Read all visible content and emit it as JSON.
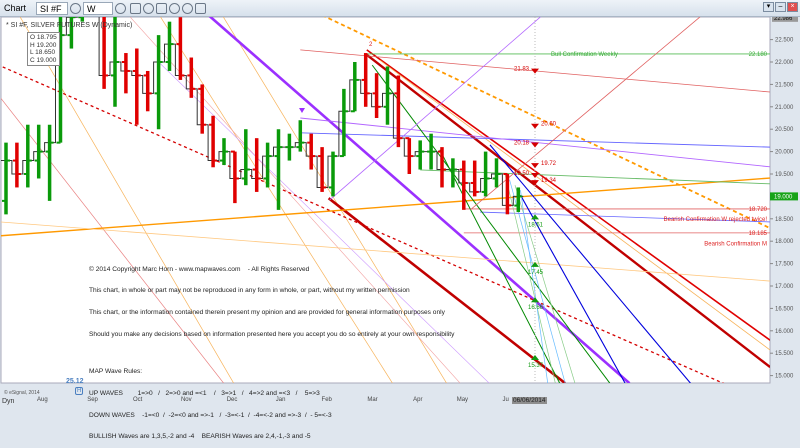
{
  "toolbar": {
    "title": "Chart",
    "symbol": "SI #F",
    "interval": "W",
    "icons": [
      "pencil-icon",
      "cursor-icon",
      "comment-icon",
      "play-icon",
      "clock-icon",
      "link-icon"
    ]
  },
  "legend": "* SI #F, SILVER FUTURES W (Dynamic)",
  "ohlc": {
    "o": "O 18.795",
    "h": "H 19.200",
    "l": "L 18.650",
    "c": "C 19.000"
  },
  "note": {
    "lines": [
      "© 2014 Copyright Marc Horn - www.mapwaves.com    - All Rights Reserved",
      "This chart, in whole or part may not be reproduced in any form in whole, or part, without my written permission",
      "This chart, or the information contained therein present my opinion and are provided for general information purposes only",
      "Should you make any decisions based on information presented here you accept you do so entirely at your own responsibility",
      "",
      "MAP Wave Rules:",
      "UP WAVES        1=>0   /   2=>0 and =<1    /   3=>1   /   4=>2 and =<3   /    5=>3",
      "DOWN WAVES    -1=<0  /  -2=<0 and =>-1   /  -3=<-1  /  -4=<-2 and =>-3  /  - 5=<-3",
      "BULLISH Waves are 1,3,5,-2 and -4    BEARISH Waves are 2,4,-1,-3 and -5"
    ]
  },
  "footer": {
    "copyright": "© eSignal, 2014",
    "dyn": "Dyn",
    "date_box": "06/06/2014",
    "high_marker_value": "25.12",
    "high_marker": "H"
  },
  "colors": {
    "up": "#0a9a0a",
    "down": "#e00000",
    "close_line": "#333333",
    "current": "#17a317"
  },
  "chart_data": {
    "type": "ohlc",
    "ylim": [
      14.83,
      23.38
    ],
    "yticks": [
      15,
      15.5,
      16,
      16.5,
      17,
      17.5,
      18,
      18.5,
      19,
      19.5,
      20,
      20.5,
      21,
      21.5,
      22,
      22.5
    ],
    "ytick_labels": [
      "15.000",
      "15.500",
      "16.000",
      "16.500",
      "17.000",
      "17.500",
      "18.000",
      "18.500",
      "19.000",
      "19.500",
      "20.000",
      "20.500",
      "21.000",
      "21.500",
      "22.000",
      "22.500"
    ],
    "top_value": "22.986",
    "current_value": "19.000",
    "xticks": [
      {
        "label": "Aug",
        "bar": 3.4
      },
      {
        "label": "Sep",
        "bar": 8
      },
      {
        "label": "Oct",
        "bar": 12.2
      },
      {
        "label": "Nov",
        "bar": 16.6
      },
      {
        "label": "Dec",
        "bar": 20.8
      },
      {
        "label": "Jan",
        "bar": 25.3
      },
      {
        "label": "Feb",
        "bar": 29.5
      },
      {
        "label": "Mar",
        "bar": 33.7
      },
      {
        "label": "Apr",
        "bar": 37.9
      },
      {
        "label": "May",
        "bar": 41.9
      },
      {
        "label": "Ju",
        "bar": 46.1
      }
    ],
    "bars": [
      [
        18.9,
        20.2,
        18.6,
        19.8
      ],
      [
        19.8,
        20.2,
        19.2,
        19.5
      ],
      [
        19.5,
        20.6,
        19.2,
        19.8
      ],
      [
        19.8,
        20.6,
        19.4,
        20.0
      ],
      [
        20.0,
        20.6,
        18.9,
        20.2
      ],
      [
        20.2,
        23.2,
        20.2,
        22.6
      ],
      [
        22.6,
        23.4,
        22.3,
        23.0
      ],
      [
        23.0,
        24.5,
        22.9,
        24.3
      ],
      [
        24.3,
        25.1,
        23.2,
        23.4
      ],
      [
        23.4,
        23.5,
        21.4,
        21.7
      ],
      [
        21.7,
        23.3,
        21.0,
        22.0
      ],
      [
        22.0,
        22.2,
        21.3,
        21.8
      ],
      [
        21.8,
        22.3,
        20.6,
        21.7
      ],
      [
        21.7,
        21.8,
        20.9,
        21.3
      ],
      [
        21.3,
        22.6,
        20.5,
        22.0
      ],
      [
        22.0,
        22.9,
        21.8,
        22.4
      ],
      [
        22.4,
        23.0,
        21.6,
        21.7
      ],
      [
        21.7,
        22.1,
        21.2,
        21.4
      ],
      [
        21.4,
        21.5,
        20.4,
        20.6
      ],
      [
        20.6,
        20.8,
        19.65,
        19.8
      ],
      [
        19.8,
        20.3,
        19.7,
        20.0
      ],
      [
        20.0,
        20.0,
        18.85,
        19.4
      ],
      [
        19.4,
        20.5,
        19.25,
        19.6
      ],
      [
        19.6,
        20.3,
        19.1,
        19.4
      ],
      [
        19.4,
        20.2,
        19.2,
        19.9
      ],
      [
        19.9,
        20.5,
        18.7,
        20.1
      ],
      [
        20.1,
        20.4,
        19.8,
        20.1
      ],
      [
        20.1,
        20.7,
        20.0,
        20.2
      ],
      [
        20.2,
        20.4,
        19.6,
        19.9
      ],
      [
        19.9,
        20.1,
        19.1,
        19.2
      ],
      [
        19.2,
        20.0,
        19.0,
        19.9
      ],
      [
        19.9,
        21.4,
        19.9,
        20.9
      ],
      [
        20.9,
        22.0,
        20.9,
        21.6
      ],
      [
        21.6,
        22.2,
        21.0,
        21.3
      ],
      [
        21.3,
        21.75,
        20.75,
        21.0
      ],
      [
        21.0,
        21.9,
        20.6,
        21.3
      ],
      [
        21.3,
        21.7,
        20.1,
        20.3
      ],
      [
        20.3,
        20.3,
        19.5,
        19.9
      ],
      [
        19.9,
        20.25,
        19.6,
        20.0
      ],
      [
        20.0,
        20.4,
        19.6,
        20.0
      ],
      [
        20.0,
        20.1,
        19.2,
        19.6
      ],
      [
        19.6,
        19.85,
        19.2,
        19.6
      ],
      [
        19.6,
        19.8,
        18.7,
        19.3
      ],
      [
        19.3,
        19.8,
        19.0,
        19.1
      ],
      [
        19.1,
        20.0,
        19.0,
        19.4
      ],
      [
        19.4,
        19.85,
        19.2,
        19.5
      ],
      [
        19.5,
        19.5,
        18.6,
        18.8
      ],
      [
        18.795,
        19.2,
        18.65,
        19.0
      ]
    ],
    "lines": [
      {
        "from": [
          0.4,
          23.38
        ],
        "to": [
          22.4,
          14.2
        ],
        "color": "#f7b35a",
        "w": 0.7
      },
      {
        "from": [
          13.2,
          23.38
        ],
        "to": [
          37.1,
          14.2
        ],
        "color": "#f7b35a",
        "w": 0.7
      },
      {
        "from": [
          19,
          23.38
        ],
        "to": [
          42,
          14.2
        ],
        "color": "#f7b35a",
        "w": 0.7
      },
      {
        "from": [
          -0.5,
          21.2
        ],
        "to": [
          22,
          14.2
        ],
        "color": "#e98080",
        "w": 0.7
      },
      {
        "from": [
          10,
          23.38
        ],
        "to": [
          44,
          14.2
        ],
        "color": "#f2a0a0",
        "w": 0.6
      },
      {
        "from": [
          14,
          22.0
        ],
        "to": [
          47,
          14.2
        ],
        "color": "#cc99ff",
        "w": 0.6
      },
      {
        "from": [
          17.8,
          23.21
        ],
        "to": [
          57.2,
          14.83
        ],
        "color": "#9b30ff",
        "w": 2.6
      },
      {
        "from": [
          29.6,
          18.96
        ],
        "to": [
          51.3,
          14.83
        ],
        "color": "#c00000",
        "w": 2.6
      },
      {
        "from": [
          33.1,
          22.27
        ],
        "to": [
          70.1,
          15.79
        ],
        "color": "#e00000",
        "w": 1.6
      },
      {
        "from": [
          33.1,
          22.16
        ],
        "to": [
          70.1,
          15.19
        ],
        "color": "#c00000",
        "w": 2.4
      },
      {
        "from": [
          34.3,
          22.04
        ],
        "to": [
          70.1,
          15.57
        ],
        "color": "#f7b35a",
        "w": 0.8
      },
      {
        "from": [
          26.1,
          23.38
        ],
        "to": [
          70.1,
          18.29
        ],
        "color": "#ff9900",
        "w": 1.8,
        "dash": "4,3"
      },
      {
        "from": [
          -0.3,
          21.89
        ],
        "to": [
          70.1,
          14.37
        ],
        "color": "#d40000",
        "w": 1.3,
        "dash": "3,3"
      },
      {
        "from": [
          -0.55,
          18.12
        ],
        "to": [
          70.1,
          19.41
        ],
        "color": "#ff9900",
        "w": 1.4
      },
      {
        "from": [
          -0.55,
          18.43
        ],
        "to": [
          70.1,
          17.11
        ],
        "color": "#ffc880",
        "w": 0.8
      },
      {
        "from": [
          33.1,
          22.18
        ],
        "to": [
          70.1,
          22.18
        ],
        "color": "#55bb55",
        "w": 0.8
      },
      {
        "from": [
          27,
          20.42
        ],
        "to": [
          70.1,
          20.1
        ],
        "color": "#6666ff",
        "w": 0.9
      },
      {
        "from": [
          27,
          20.75
        ],
        "to": [
          70.1,
          19.66
        ],
        "color": "#b266ff",
        "w": 0.9
      },
      {
        "from": [
          38,
          19.59
        ],
        "to": [
          70.1,
          19.28
        ],
        "color": "#66bb66",
        "w": 0.9
      },
      {
        "from": [
          42,
          18.72
        ],
        "to": [
          70.1,
          18.72
        ],
        "color": "#e06060",
        "w": 0.8
      },
      {
        "from": [
          42,
          18.185
        ],
        "to": [
          70.1,
          18.185
        ],
        "color": "#e06060",
        "w": 0.8
      },
      {
        "from": [
          43.5,
          18.65
        ],
        "to": [
          70.1,
          18.43
        ],
        "color": "#6666ff",
        "w": 0.8
      },
      {
        "from": [
          27,
          22.27
        ],
        "to": [
          70.1,
          21.33
        ],
        "color": "#e06060",
        "w": 0.8
      },
      {
        "from": [
          44.4,
          20.15
        ],
        "to": [
          62.8,
          14.83
        ],
        "color": "#0000dd",
        "w": 1.1
      },
      {
        "from": [
          47.2,
          19.03
        ],
        "to": [
          56.8,
          14.83
        ],
        "color": "#0000dd",
        "w": 1.1
      },
      {
        "from": [
          33.6,
          21.93
        ],
        "to": [
          55.4,
          14.83
        ],
        "color": "#008800",
        "w": 1
      },
      {
        "from": [
          39.8,
          20.04
        ],
        "to": [
          50.8,
          14.83
        ],
        "color": "#008800",
        "w": 1
      },
      {
        "from": [
          45.8,
          19.48
        ],
        "to": [
          50.4,
          14.83
        ],
        "color": "#88cc88",
        "w": 0.7
      },
      {
        "from": [
          46.2,
          19.37
        ],
        "to": [
          51.3,
          14.83
        ],
        "color": "#66bbff",
        "w": 0.7
      },
      {
        "from": [
          46.7,
          19.25
        ],
        "to": [
          52.2,
          14.83
        ],
        "color": "#88cc88",
        "w": 0.7
      },
      {
        "from": [
          47.2,
          19.14
        ],
        "to": [
          49.7,
          14.83
        ],
        "color": "#66bbff",
        "w": 0.7
      },
      {
        "from": [
          42.6,
          18.7
        ],
        "to": [
          65.5,
          23.38
        ],
        "color": "#e06060",
        "w": 0.8
      },
      {
        "from": [
          29.7,
          18.92
        ],
        "to": [
          50.8,
          23.38
        ],
        "color": "#b266ff",
        "w": 0.8
      }
    ],
    "annotations": [
      {
        "text": "Bull Confirmation Weekly",
        "bar": 50,
        "price": 22.18,
        "color": "#33aa33"
      },
      {
        "text": "22.180",
        "bar": 68.6,
        "price": 22.18,
        "color": "#33aa33"
      },
      {
        "text": "18.720",
        "bar": 68.6,
        "price": 18.72,
        "color": "#dd2222"
      },
      {
        "text": "Bearish Confirmation W rejected twice!",
        "bar": 62.3,
        "price": 18.5,
        "color": "#dd2222"
      },
      {
        "text": "18.185",
        "bar": 68.6,
        "price": 18.185,
        "color": "#dd2222"
      },
      {
        "text": "Bearish Confirmation M",
        "bar": 65.5,
        "price": 17.95,
        "color": "#dd2222"
      },
      {
        "text": "2",
        "bar": 33.3,
        "price": 22.4,
        "color": "#dd2222"
      }
    ],
    "targets_down": [
      "21.83",
      "20.60",
      "20.18",
      "19.72",
      "19.50",
      "19.34"
    ],
    "targets_down_prices": [
      21.83,
      20.6,
      20.18,
      19.72,
      19.5,
      19.34
    ],
    "targets_up": [
      "18.51",
      "17.45",
      "16.66",
      "15.37"
    ],
    "targets_up_prices": [
      18.51,
      17.45,
      16.66,
      15.37
    ]
  }
}
